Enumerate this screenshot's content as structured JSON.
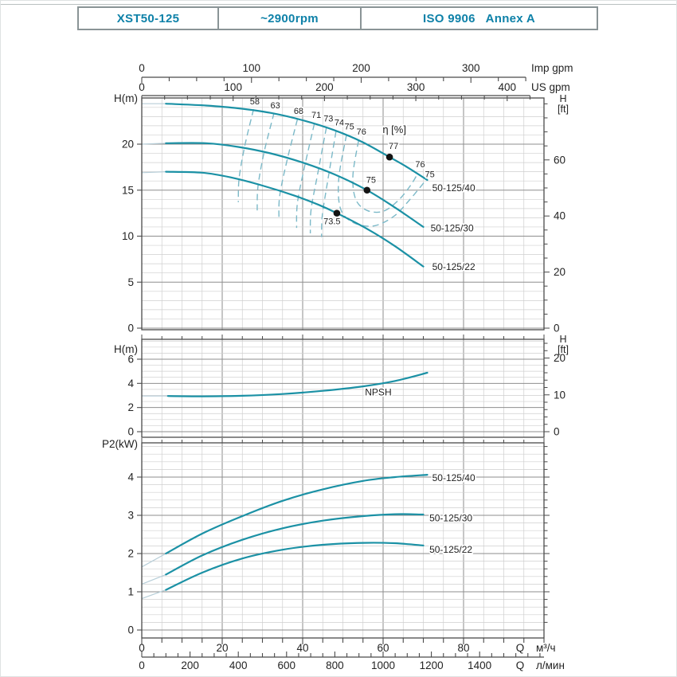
{
  "header": {
    "cells": [
      "XST50-125",
      "~2900rpm",
      "ISO 9906   Annex A"
    ]
  },
  "colors": {
    "accent_text": "#0e81a8",
    "curve": "#1b91a5",
    "curve_dashed": "#7cb9c8",
    "curve_light": "#b7ced8",
    "dot": "#141414",
    "text": "#232323",
    "grid_minor": "#cfcfcf",
    "grid_major": "#8e8e8e",
    "frame": "#4a4a4a"
  },
  "x_axis": {
    "xlim": [
      0,
      100
    ],
    "minor_step": 5,
    "major_step": 20,
    "top_scales": [
      {
        "prefix": "",
        "label": "Imp gpm",
        "units_per_m3h": 3.6662,
        "ticks": [
          0,
          100,
          200,
          300
        ],
        "minor_step": 25
      },
      {
        "prefix": "",
        "label": "US gpm",
        "units_per_m3h": 4.4029,
        "ticks": [
          0,
          100,
          200,
          300,
          400
        ],
        "minor_step": 25
      }
    ],
    "bottom_scales": [
      {
        "prefix": "Q",
        "label": "м³/ч",
        "units_per_m3h": 1,
        "ticks": [
          0,
          20,
          40,
          60,
          80
        ],
        "minor_step": 5
      },
      {
        "prefix": "Q",
        "label": "л/мин",
        "units_per_m3h": 16.667,
        "ticks": [
          0,
          200,
          400,
          600,
          800,
          1000,
          1200,
          1400
        ],
        "minor_step": 50
      }
    ]
  },
  "chart_data": [
    {
      "name": "head-capacity",
      "type": "line",
      "ylabel": "H(m)",
      "y2label": [
        "H",
        "[ft]"
      ],
      "ylim": [
        0,
        25.0
      ],
      "yticks": [
        0,
        5,
        10,
        15,
        20
      ],
      "y_minor_step": 1,
      "y2ticks_ft": [
        0,
        20,
        40,
        60
      ],
      "y2_minor_step_ft": 5,
      "series": [
        {
          "name": "50-125/40",
          "label": "50-125/40",
          "label_pos": [
            72.2,
            14.9
          ],
          "solid_from": 6,
          "points": [
            [
              0,
              24.4
            ],
            [
              6,
              24.4
            ],
            [
              16,
              24.2
            ],
            [
              24,
              23.9
            ],
            [
              32,
              23.4
            ],
            [
              40,
              22.6
            ],
            [
              48,
              21.5
            ],
            [
              55,
              20.2
            ],
            [
              61.6,
              18.6
            ],
            [
              66,
              17.5
            ],
            [
              71,
              16.1
            ]
          ]
        },
        {
          "name": "50-125/30",
          "label": "50-125/30",
          "label_pos": [
            71.8,
            10.5
          ],
          "solid_from": 6,
          "points": [
            [
              0,
              20.0
            ],
            [
              6,
              20.1
            ],
            [
              16,
              20.1
            ],
            [
              24,
              19.7
            ],
            [
              32,
              19.0
            ],
            [
              40,
              18.0
            ],
            [
              48,
              16.7
            ],
            [
              56,
              15.0
            ],
            [
              63,
              13.1
            ],
            [
              70,
              11.0
            ]
          ]
        },
        {
          "name": "50-125/22",
          "label": "50-125/22",
          "label_pos": [
            72.2,
            6.3
          ],
          "solid_from": 6,
          "points": [
            [
              0,
              16.9
            ],
            [
              6,
              17.0
            ],
            [
              15,
              16.9
            ],
            [
              22,
              16.4
            ],
            [
              30,
              15.5
            ],
            [
              38,
              14.4
            ],
            [
              44,
              13.4
            ],
            [
              48.5,
              12.5
            ],
            [
              56,
              10.8
            ],
            [
              63,
              8.9
            ],
            [
              70,
              6.7
            ]
          ]
        }
      ],
      "bep_dots": [
        {
          "label": "77",
          "pos": [
            61.6,
            18.6
          ],
          "label_pos": [
            62.6,
            19.5
          ]
        },
        {
          "label": "75",
          "pos": [
            56.0,
            15.0
          ],
          "label_pos": [
            57.0,
            15.8
          ]
        },
        {
          "label": "73.5",
          "pos": [
            48.5,
            12.5
          ],
          "label_pos": [
            47.3,
            11.3
          ]
        }
      ],
      "efficiency": {
        "title": "η [%]",
        "title_pos": [
          62.8,
          21.2
        ],
        "contours": [
          {
            "label": "58",
            "label_pos": [
              28.1,
              24.35
            ],
            "points": [
              [
                27.8,
                23.8
              ],
              [
                25.6,
                19.8
              ],
              [
                24.2,
                16.3
              ],
              [
                24.0,
                13.7
              ]
            ]
          },
          {
            "label": "63",
            "label_pos": [
              33.2,
              23.9
            ],
            "points": [
              [
                32.9,
                23.4
              ],
              [
                30.4,
                19.1
              ],
              [
                28.9,
                15.4
              ],
              [
                28.7,
                12.8
              ]
            ]
          },
          {
            "label": "68",
            "label_pos": [
              39.0,
              23.3
            ],
            "points": [
              [
                38.7,
                22.7
              ],
              [
                36.1,
                18.2
              ],
              [
                34.3,
                14.4
              ],
              [
                34.1,
                11.8
              ]
            ]
          },
          {
            "label": "71",
            "label_pos": [
              43.4,
              22.85
            ],
            "points": [
              [
                42.9,
                22.2
              ],
              [
                40.4,
                17.4
              ],
              [
                38.7,
                13.6
              ],
              [
                38.5,
                10.9
              ]
            ]
          },
          {
            "label": "73",
            "label_pos": [
              46.4,
              22.45
            ],
            "points": [
              [
                45.9,
                21.8
              ],
              [
                43.7,
                16.7
              ],
              [
                42.1,
                12.9
              ],
              [
                41.9,
                10.3
              ]
            ]
          },
          {
            "label": "74",
            "label_pos": [
              49.1,
              22.05
            ],
            "points": [
              [
                48.3,
                21.4
              ],
              [
                46.3,
                16.2
              ],
              [
                44.9,
                12.3
              ],
              [
                44.7,
                9.9
              ]
            ]
          },
          {
            "label": "75",
            "label_pos": [
              51.6,
              21.6
            ],
            "points": [
              [
                50.9,
                21.0
              ],
              [
                49.0,
                16.3
              ],
              [
                49.4,
                13.0
              ],
              [
                52.5,
                11.5
              ],
              [
                57.5,
                11.1
              ],
              [
                62.5,
                12.1
              ],
              [
                66.5,
                13.9
              ],
              [
                70.5,
                16.0
              ]
            ]
          },
          {
            "label": "76",
            "label_pos": [
              54.6,
              21.05
            ],
            "points": [
              [
                53.9,
                20.4
              ],
              [
                52.5,
                16.6
              ],
              [
                53.2,
                14.0
              ],
              [
                56.0,
                12.8
              ],
              [
                60.0,
                12.7
              ],
              [
                63.8,
                13.9
              ],
              [
                66.8,
                15.5
              ],
              [
                68.6,
                16.8
              ]
            ]
          }
        ],
        "right_labels": [
          {
            "label": "76",
            "pos": [
              69.2,
              17.5
            ]
          },
          {
            "label": "75",
            "pos": [
              71.6,
              16.4
            ]
          }
        ]
      }
    },
    {
      "name": "npsh",
      "type": "line",
      "ylabel": "H(m)",
      "y2label": [
        "H",
        "[ft]"
      ],
      "ylim": [
        0,
        7.6
      ],
      "yticks": [
        0,
        2,
        4,
        6
      ],
      "y_minor_step": 0.5,
      "y2ticks_ft": [
        0,
        10,
        20
      ],
      "y2_minor_step_ft": 2,
      "series": [
        {
          "name": "NPSH",
          "label": "NPSH",
          "label_pos": [
            55.5,
            3.0
          ],
          "solid_from": 6.5,
          "points": [
            [
              0,
              2.95
            ],
            [
              6.5,
              2.95
            ],
            [
              15,
              2.93
            ],
            [
              25,
              2.97
            ],
            [
              35,
              3.12
            ],
            [
              45,
              3.38
            ],
            [
              55,
              3.75
            ],
            [
              63,
              4.2
            ],
            [
              71,
              4.88
            ]
          ]
        }
      ]
    },
    {
      "name": "power",
      "type": "line",
      "ylabel": "P2(kW)",
      "y2label": null,
      "ylim": [
        0,
        4.9
      ],
      "yticks": [
        0,
        1,
        2,
        3,
        4
      ],
      "y_minor_step": 0.2,
      "series": [
        {
          "name": "50-125/40",
          "label": "50-125/40",
          "label_pos": [
            72.2,
            3.9
          ],
          "solid_from": 6,
          "points": [
            [
              0,
              1.65
            ],
            [
              6,
              2.0
            ],
            [
              15,
              2.52
            ],
            [
              25,
              2.98
            ],
            [
              35,
              3.38
            ],
            [
              45,
              3.68
            ],
            [
              55,
              3.9
            ],
            [
              63,
              4.0
            ],
            [
              71,
              4.06
            ]
          ]
        },
        {
          "name": "50-125/30",
          "label": "50-125/30",
          "label_pos": [
            71.5,
            2.84
          ],
          "solid_from": 6,
          "points": [
            [
              0,
              1.2
            ],
            [
              6,
              1.45
            ],
            [
              15,
              1.95
            ],
            [
              25,
              2.36
            ],
            [
              35,
              2.66
            ],
            [
              45,
              2.86
            ],
            [
              55,
              2.98
            ],
            [
              63,
              3.03
            ],
            [
              70,
              3.02
            ]
          ]
        },
        {
          "name": "50-125/22",
          "label": "50-125/22",
          "label_pos": [
            71.5,
            2.02
          ],
          "solid_from": 6,
          "points": [
            [
              0,
              0.82
            ],
            [
              6,
              1.05
            ],
            [
              15,
              1.5
            ],
            [
              25,
              1.87
            ],
            [
              35,
              2.1
            ],
            [
              45,
              2.23
            ],
            [
              55,
              2.28
            ],
            [
              63,
              2.27
            ],
            [
              70,
              2.21
            ]
          ]
        }
      ]
    }
  ]
}
